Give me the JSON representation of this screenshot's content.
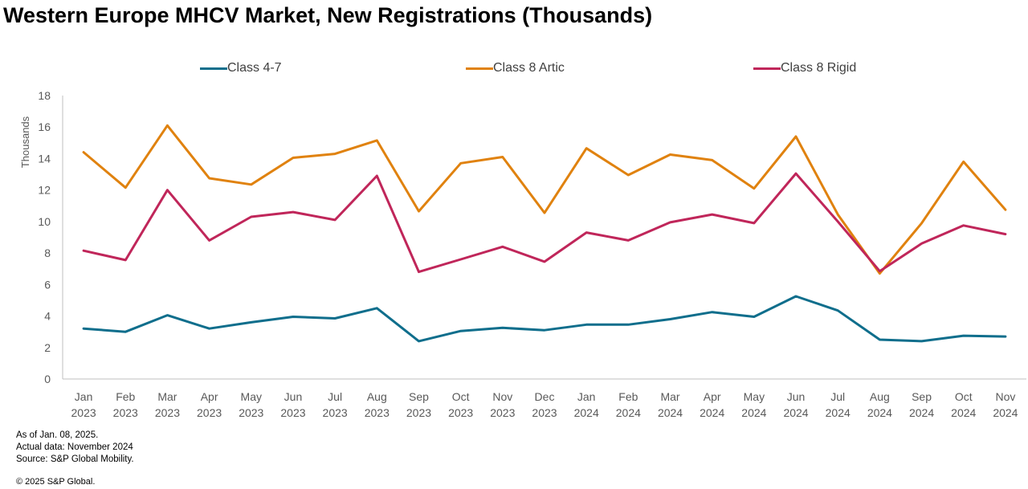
{
  "title": "Western Europe MHCV Market, New Registrations (Thousands)",
  "notes": {
    "line1": "As of Jan. 08, 2025.",
    "line2": "Actual data: November 2024",
    "line3": "Source: S&P Global Mobility."
  },
  "copyright": "© 2025 S&P Global.",
  "chart_data": {
    "type": "line",
    "ylabel": "Thousands",
    "ylim": [
      0,
      18
    ],
    "yticks": [
      0,
      2,
      4,
      6,
      8,
      10,
      12,
      14,
      16,
      18
    ],
    "legend_position": "top",
    "grid": false,
    "categories": [
      [
        "Jan",
        "2023"
      ],
      [
        "Feb",
        "2023"
      ],
      [
        "Mar",
        "2023"
      ],
      [
        "Apr",
        "2023"
      ],
      [
        "May",
        "2023"
      ],
      [
        "Jun",
        "2023"
      ],
      [
        "Jul",
        "2023"
      ],
      [
        "Aug",
        "2023"
      ],
      [
        "Sep",
        "2023"
      ],
      [
        "Oct",
        "2023"
      ],
      [
        "Nov",
        "2023"
      ],
      [
        "Dec",
        "2023"
      ],
      [
        "Jan",
        "2024"
      ],
      [
        "Feb",
        "2024"
      ],
      [
        "Mar",
        "2024"
      ],
      [
        "Apr",
        "2024"
      ],
      [
        "May",
        "2024"
      ],
      [
        "Jun",
        "2024"
      ],
      [
        "Jul",
        "2024"
      ],
      [
        "Aug",
        "2024"
      ],
      [
        "Sep",
        "2024"
      ],
      [
        "Oct",
        "2024"
      ],
      [
        "Nov",
        "2024"
      ]
    ],
    "series": [
      {
        "name": "Class 4-7",
        "color": "#0f6e8c",
        "values": [
          3.2,
          3.0,
          4.05,
          3.2,
          3.6,
          3.95,
          3.85,
          4.5,
          2.4,
          3.05,
          3.25,
          3.1,
          3.45,
          3.45,
          3.8,
          4.25,
          3.95,
          5.25,
          4.35,
          2.5,
          2.4,
          2.75,
          2.7
        ]
      },
      {
        "name": "Class 8 Artic",
        "color": "#e0820f",
        "values": [
          14.4,
          12.15,
          16.1,
          12.75,
          12.35,
          14.05,
          14.3,
          15.15,
          10.65,
          13.7,
          14.1,
          10.55,
          14.65,
          12.95,
          14.25,
          13.9,
          12.1,
          15.4,
          10.45,
          6.7,
          9.9,
          13.8,
          10.75
        ]
      },
      {
        "name": "Class 8 Rigid",
        "color": "#c0265a",
        "values": [
          8.15,
          7.55,
          12.0,
          8.8,
          10.3,
          10.6,
          10.1,
          12.9,
          6.8,
          7.6,
          8.4,
          7.45,
          9.3,
          8.8,
          9.95,
          10.45,
          9.9,
          13.05,
          10.0,
          6.85,
          8.6,
          9.75,
          9.2
        ]
      }
    ]
  }
}
